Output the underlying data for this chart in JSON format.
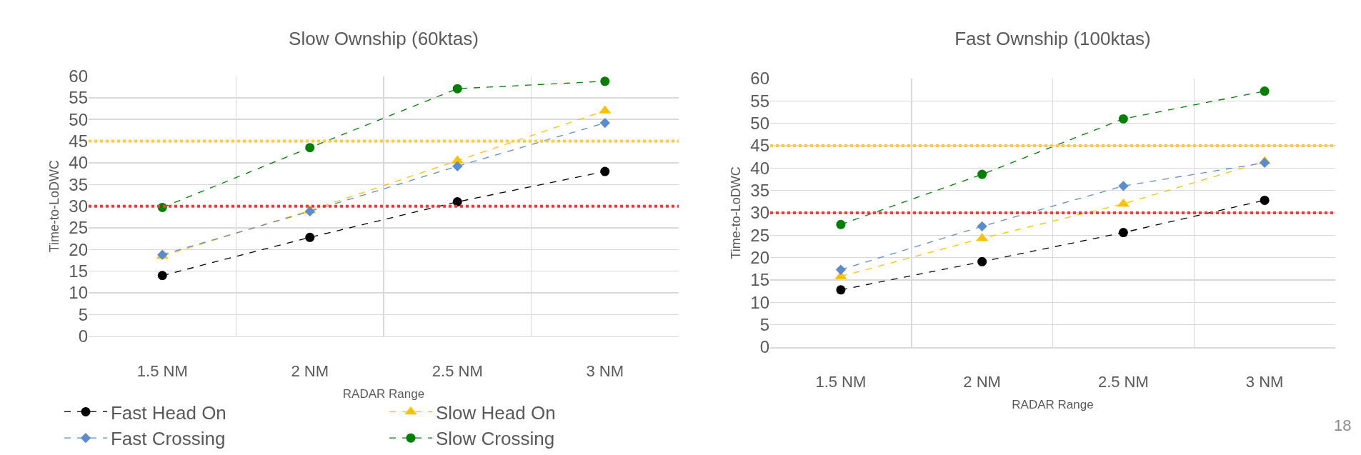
{
  "chart_data": [
    {
      "type": "line",
      "title": "Slow Ownship (60ktas)",
      "xlabel": "RADAR Range",
      "ylabel": "Time-to-LoDWC",
      "categories": [
        "1.5 NM",
        "2 NM",
        "2.5 NM",
        "3 NM"
      ],
      "series": [
        {
          "name": "Fast Head On",
          "color": "#000000",
          "marker": "circle",
          "values": [
            14,
            22.8,
            31,
            38
          ]
        },
        {
          "name": "Slow Head On",
          "color": "#ffc000",
          "marker": "triangle",
          "values": [
            18.5,
            29,
            40.5,
            52
          ]
        },
        {
          "name": "Fast Crossing",
          "color": "#5b8ccf",
          "marker": "diamond",
          "values": [
            18.8,
            28.8,
            39.2,
            49.2
          ]
        },
        {
          "name": "Slow Crossing",
          "color": "#008000",
          "marker": "circle",
          "values": [
            29.7,
            43.5,
            57.1,
            58.8
          ]
        }
      ],
      "ylim": [
        0,
        60
      ],
      "yticks": [
        0,
        5,
        10,
        15,
        20,
        25,
        30,
        35,
        40,
        45,
        50,
        55,
        60
      ],
      "grid": true,
      "legend": "bottom",
      "line_style": "dashed",
      "ref_lines": [
        {
          "axis": "y",
          "value": 45,
          "color": "#ffcc33",
          "line_style": "dotted"
        },
        {
          "axis": "y",
          "value": 30,
          "color": "#ff3333",
          "line_style": "dotted"
        }
      ],
      "annotations": [
        "18"
      ]
    },
    {
      "type": "line",
      "title": "Fast Ownship (100ktas)",
      "xlabel": "RADAR Range",
      "ylabel": "Time-to-LoDWC",
      "categories": [
        "1.5 NM",
        "2 NM",
        "2.5 NM",
        "3 NM"
      ],
      "series": [
        {
          "color": "#000000",
          "marker": "circle",
          "values": [
            12.8,
            19.1,
            25.6,
            32.8
          ]
        },
        {
          "color": "#ffc000",
          "marker": "triangle",
          "values": [
            15.8,
            24.3,
            32,
            41.5
          ]
        },
        {
          "color": "#5b8ccf",
          "marker": "diamond",
          "values": [
            17.3,
            27,
            36,
            41.2
          ]
        },
        {
          "color": "#008000",
          "marker": "circle",
          "values": [
            27.4,
            38.6,
            51,
            57.2
          ]
        }
      ],
      "ylim": [
        0,
        60
      ],
      "yticks": [
        0,
        5,
        10,
        15,
        20,
        25,
        30,
        35,
        40,
        45,
        50,
        55,
        60
      ],
      "grid": true,
      "line_style": "dashed",
      "ref_lines": [
        {
          "axis": "y",
          "value": 45,
          "color": "#ffcc33",
          "line_style": "dotted"
        },
        {
          "axis": "y",
          "value": 30,
          "color": "#ff3333",
          "line_style": "dotted"
        }
      ]
    }
  ]
}
